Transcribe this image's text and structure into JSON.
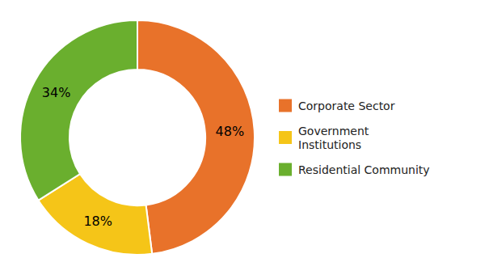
{
  "chart_data": {
    "type": "donut",
    "categories": [
      "Corporate Sector",
      "Government\nInstitutions",
      "Residential Community"
    ],
    "values": [
      48,
      18,
      34
    ],
    "value_labels": [
      "48%",
      "18%",
      "34%"
    ],
    "colors": [
      "#E8722A",
      "#F5C518",
      "#6AAF2E"
    ],
    "data_labels": true,
    "legend": "right"
  }
}
